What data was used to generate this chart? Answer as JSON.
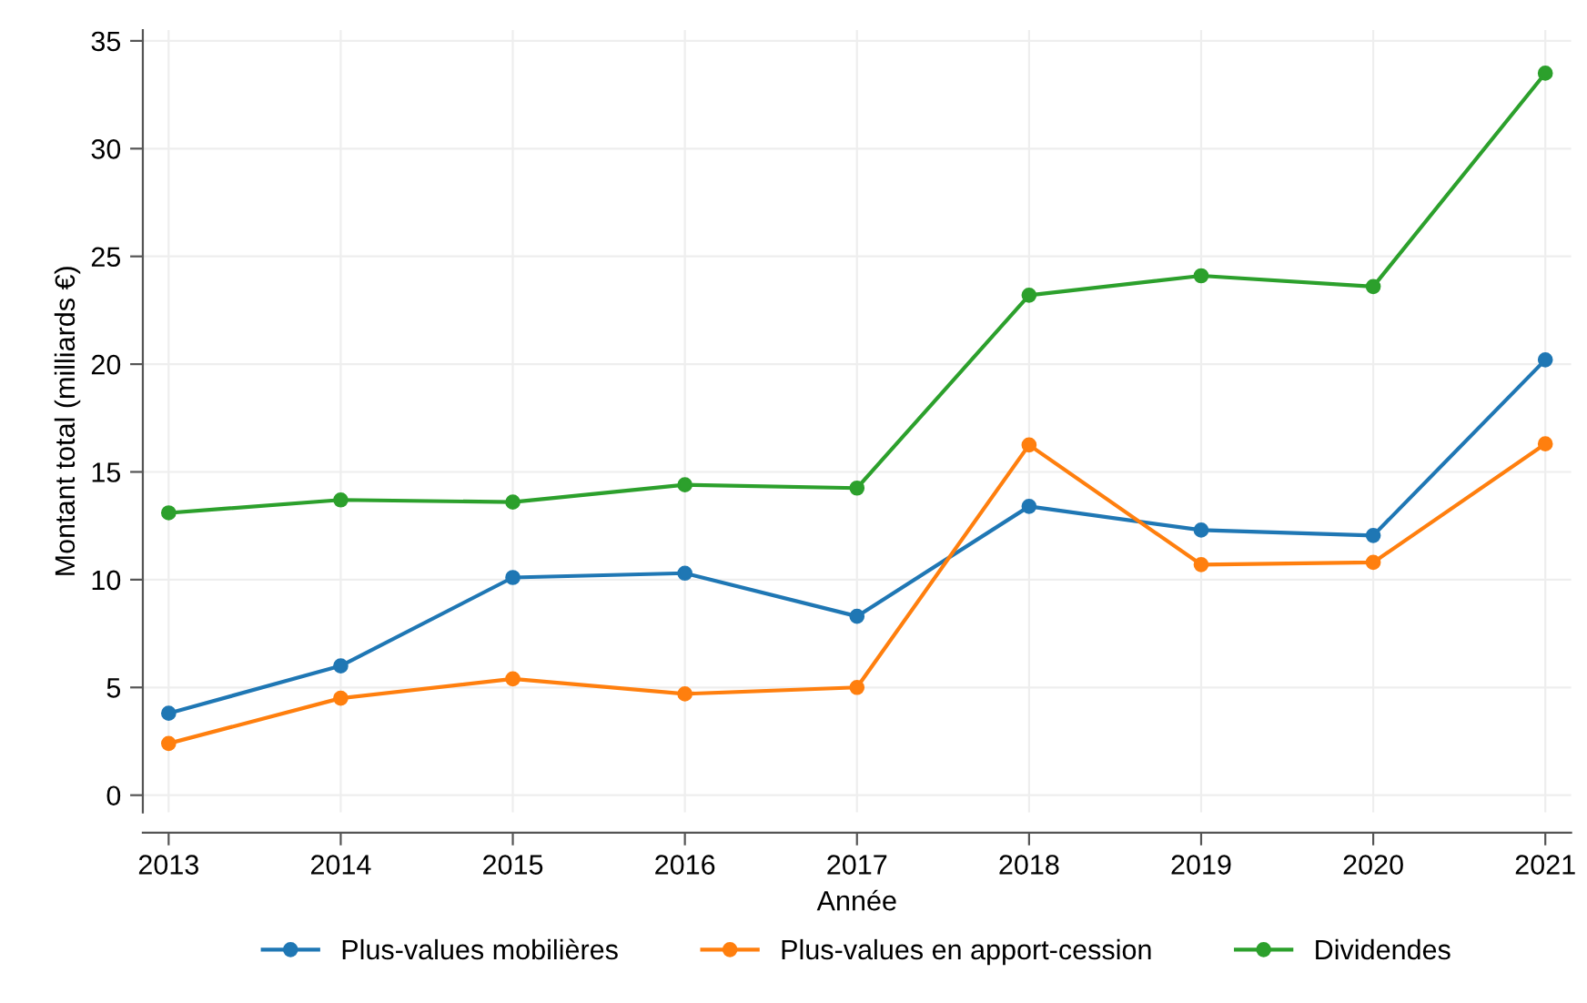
{
  "chart_data": {
    "type": "line",
    "xlabel": "Année",
    "ylabel": "Montant total (milliards €)",
    "x": [
      2013,
      2014,
      2015,
      2016,
      2017,
      2018,
      2019,
      2020,
      2021
    ],
    "xlim": [
      2012.85,
      2021.15
    ],
    "xticks": [
      2013,
      2014,
      2015,
      2016,
      2017,
      2018,
      2019,
      2020,
      2021
    ],
    "ylim": [
      -0.8,
      35.5
    ],
    "yticks": [
      0,
      5,
      10,
      15,
      20,
      25,
      30,
      35
    ],
    "grid": true,
    "legend": "bottom",
    "marker": "circle",
    "line_style": "solid",
    "series": [
      {
        "name": "Plus-values mobilières",
        "color": "#1f77b4",
        "values": [
          3.8,
          6.0,
          10.1,
          10.3,
          8.3,
          13.4,
          12.3,
          12.05,
          20.2
        ]
      },
      {
        "name": "Plus-values en apport-cession",
        "color": "#ff7f0e",
        "values": [
          2.4,
          4.5,
          5.4,
          4.7,
          5.0,
          16.25,
          10.7,
          10.8,
          16.3
        ]
      },
      {
        "name": "Dividendes",
        "color": "#2ca02c",
        "values": [
          13.1,
          13.7,
          13.6,
          14.4,
          14.25,
          23.2,
          24.1,
          23.6,
          33.5
        ]
      }
    ]
  }
}
